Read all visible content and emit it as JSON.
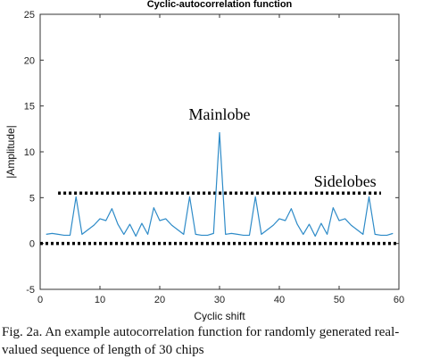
{
  "chart_data": {
    "type": "line",
    "title": "Cyclic-autocorrelation function",
    "xlabel": "Cyclic shift",
    "ylabel": "|Amplitude|",
    "xlim": [
      0,
      60
    ],
    "ylim": [
      -5,
      25
    ],
    "x_ticks": [
      0,
      10,
      20,
      30,
      40,
      50,
      60
    ],
    "y_ticks": [
      -5,
      0,
      5,
      10,
      15,
      20,
      25
    ],
    "grid": false,
    "series": [
      {
        "color": "#2e8bc8",
        "x": [
          1,
          2,
          3,
          4,
          5,
          6,
          7,
          8,
          9,
          10,
          11,
          12,
          13,
          14,
          15,
          16,
          17,
          18,
          19,
          20,
          21,
          22,
          23,
          24,
          25,
          26,
          27,
          28,
          29,
          30,
          31,
          32,
          33,
          34,
          35,
          36,
          37,
          38,
          39,
          40,
          41,
          42,
          43,
          44,
          45,
          46,
          47,
          48,
          49,
          50,
          51,
          52,
          53,
          54,
          55,
          56,
          57,
          58,
          59
        ],
        "values": [
          1.0,
          1.1,
          1.0,
          0.9,
          0.9,
          5.1,
          1.0,
          1.5,
          2.0,
          2.7,
          2.5,
          3.8,
          2.1,
          1.0,
          2.1,
          0.8,
          2.2,
          1.0,
          3.9,
          2.5,
          2.7,
          2.0,
          1.5,
          1.0,
          5.1,
          1.0,
          0.9,
          0.9,
          1.1,
          12.1,
          1.0,
          1.1,
          1.0,
          0.9,
          0.9,
          5.1,
          1.0,
          1.5,
          2.0,
          2.7,
          2.5,
          3.8,
          2.1,
          1.0,
          2.1,
          0.8,
          2.2,
          1.0,
          3.9,
          2.5,
          2.7,
          2.0,
          1.5,
          1.0,
          5.1,
          1.0,
          0.9,
          0.9,
          1.1
        ]
      }
    ],
    "reference_lines": [
      {
        "y": 5.5,
        "x_from": 3,
        "x_to": 57,
        "style": "dotted",
        "color": "#000000"
      },
      {
        "y": 0,
        "x_from": 0,
        "x_to": 60,
        "style": "dotted",
        "color": "#000000"
      }
    ],
    "annotations": [
      {
        "text": "Mainlobe",
        "x": 30,
        "y": 13.5
      },
      {
        "text": "Sidelobes",
        "x": 51,
        "y": 6.2
      }
    ]
  },
  "caption": "Fig. 2a. An example autocorrelation function for randomly generated real-valued sequence of length of 30 chips"
}
